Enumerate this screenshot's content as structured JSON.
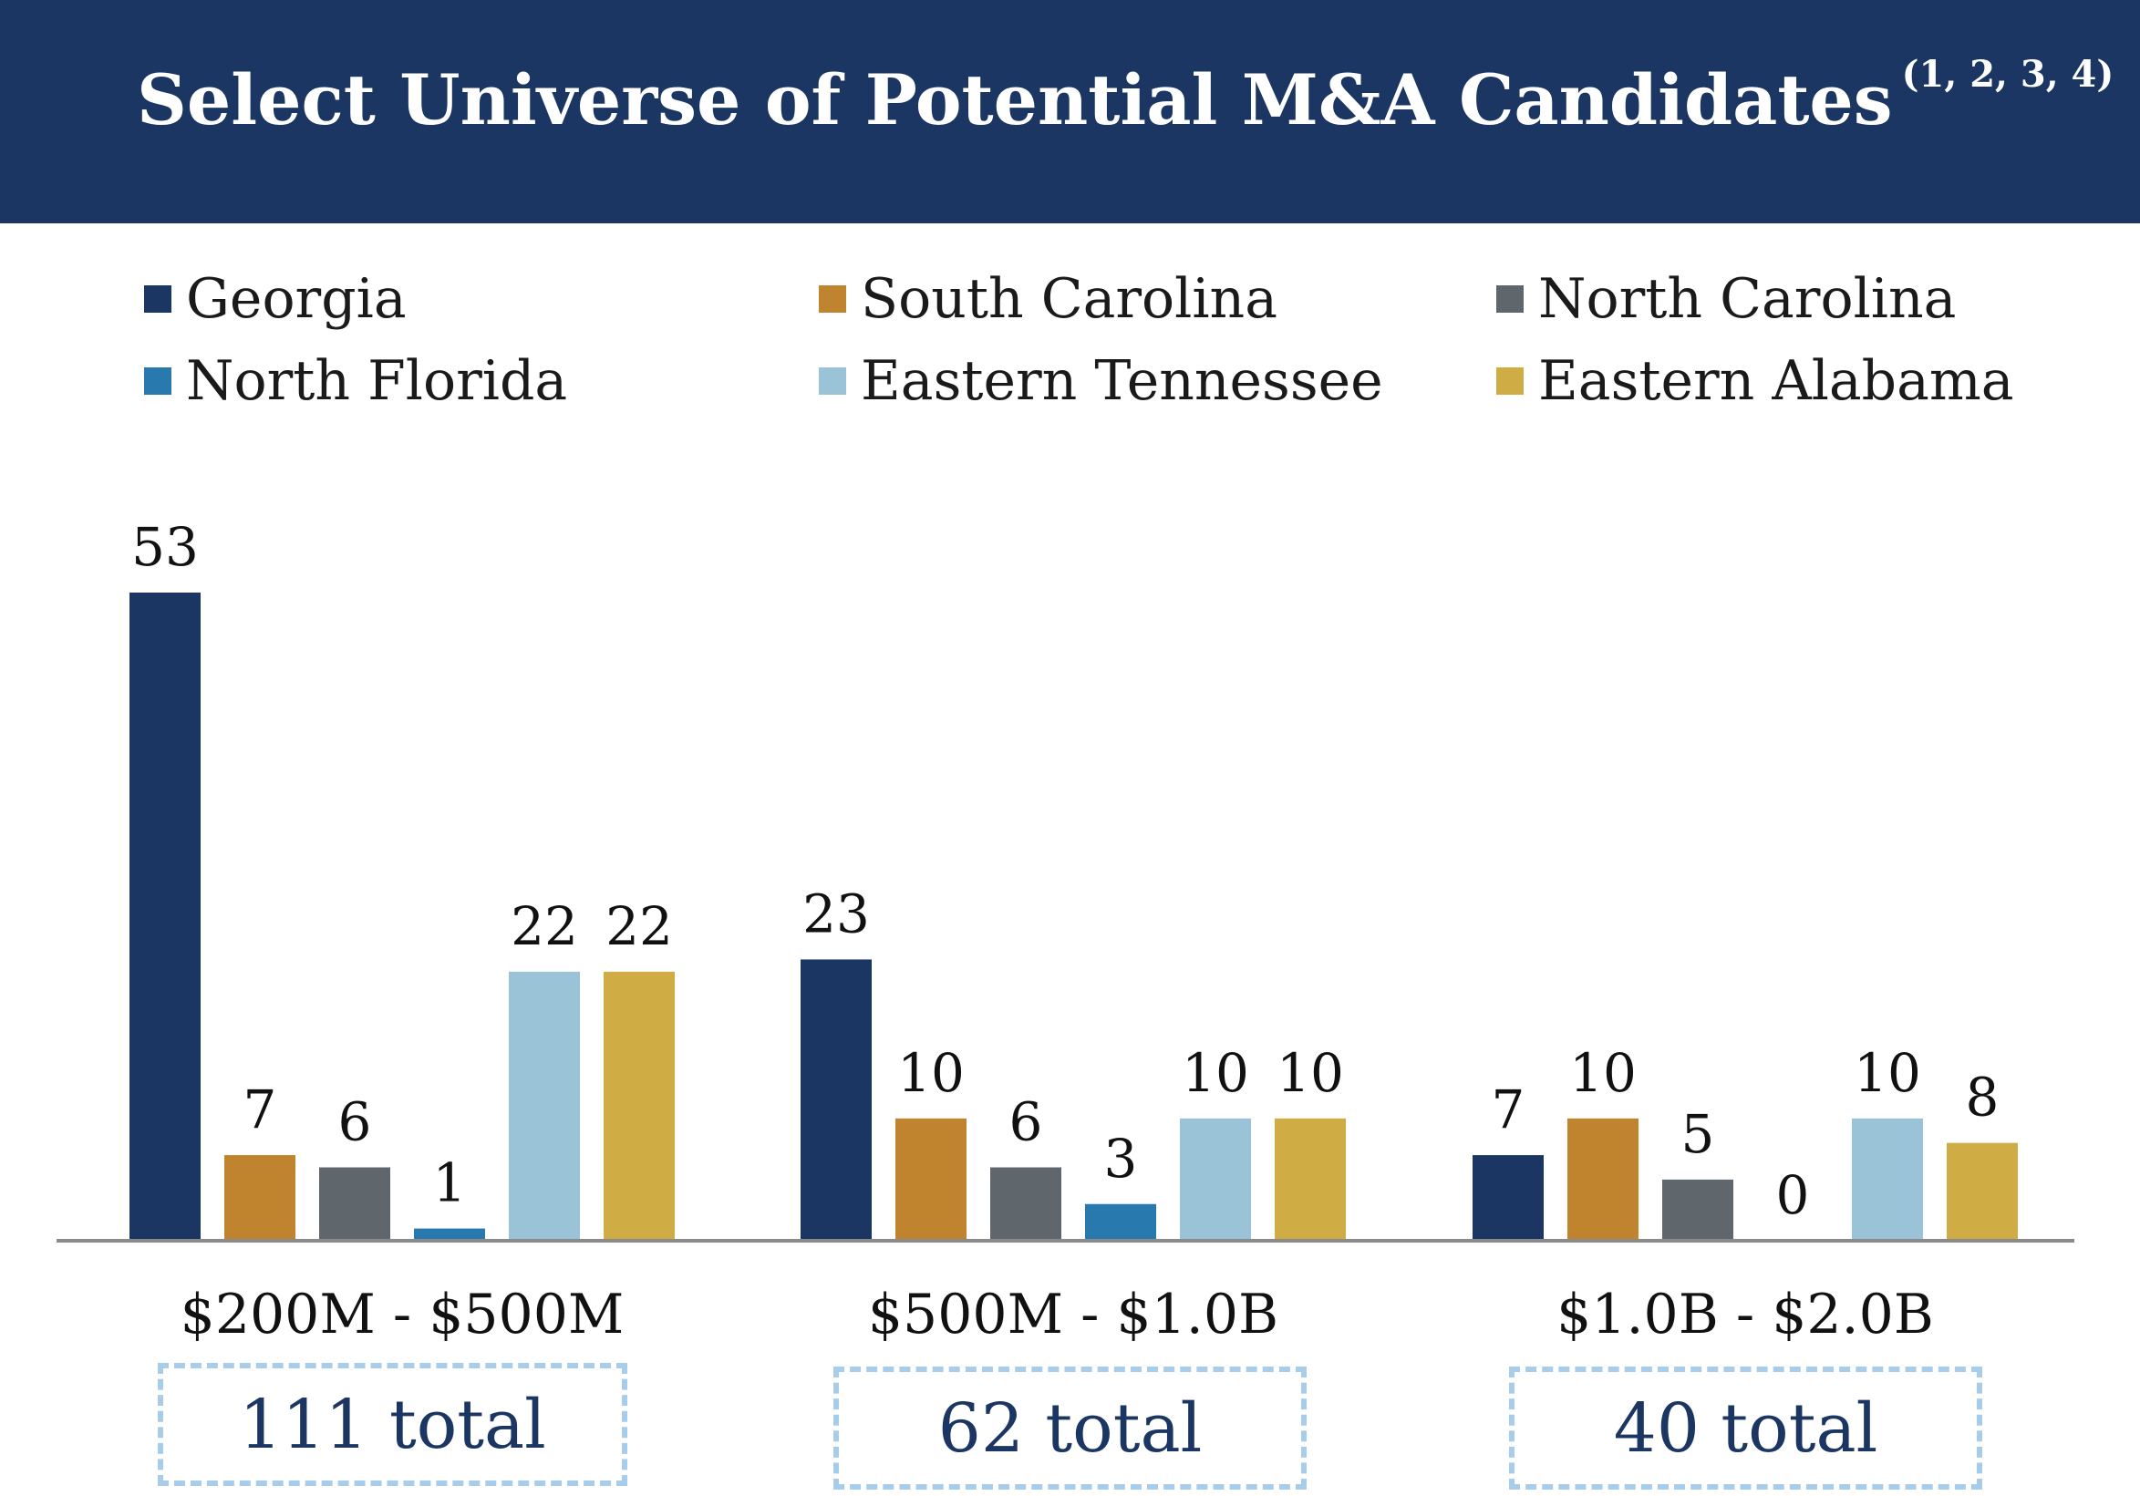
{
  "title": "Select Universe of Potential M&A Candidates",
  "title_superscript": "(1, 2, 3, 4)",
  "colors": {
    "header_bg": "#1b3662",
    "Georgia": "#1b3662",
    "South Carolina": "#c0832e",
    "North Carolina": "#5f676d",
    "North Florida": "#2879ad",
    "Eastern Tennessee": "#9bc3d8",
    "Eastern Alabama": "#cfad44",
    "box_border": "#a7cdea"
  },
  "chart_data": {
    "type": "bar",
    "title": "Select Universe of Potential M&A Candidates",
    "xlabel": "",
    "ylabel": "",
    "ylim": [
      0,
      53
    ],
    "legend_position": "top",
    "grid": false,
    "categories": [
      "$200M - $500M",
      "$500M - $1.0B",
      "$1.0B - $2.0B"
    ],
    "series": [
      {
        "name": "Georgia",
        "values": [
          53,
          23,
          7
        ]
      },
      {
        "name": "South Carolina",
        "values": [
          7,
          10,
          10
        ]
      },
      {
        "name": "North Carolina",
        "values": [
          6,
          6,
          5
        ]
      },
      {
        "name": "North Florida",
        "values": [
          1,
          3,
          0
        ]
      },
      {
        "name": "Eastern Tennessee",
        "values": [
          22,
          10,
          10
        ]
      },
      {
        "name": "Eastern Alabama",
        "values": [
          22,
          10,
          8
        ]
      }
    ],
    "totals": [
      "111 total",
      "62 total",
      "40 total"
    ]
  }
}
